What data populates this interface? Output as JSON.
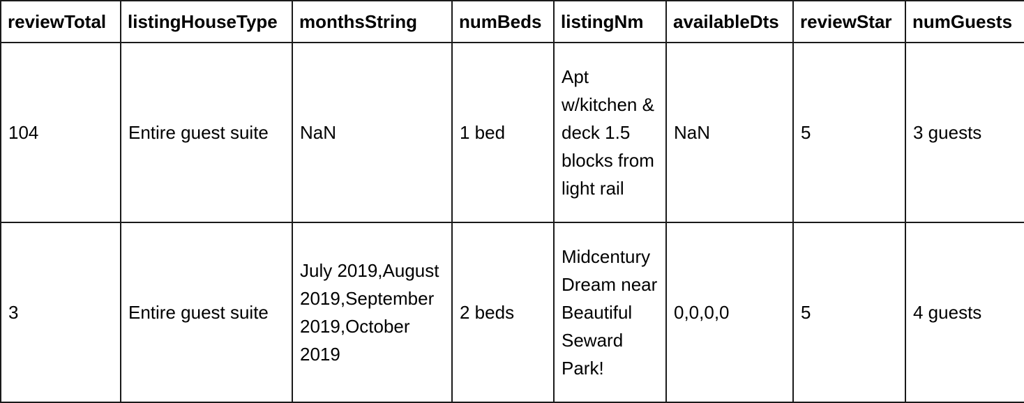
{
  "table": {
    "columns": [
      "reviewTotal",
      "listingHouseType",
      "monthsString",
      "numBeds",
      "listingNm",
      "availableDts",
      "reviewStar",
      "numGuests"
    ],
    "rows": [
      {
        "reviewTotal": "104",
        "listingHouseType": "Entire guest suite",
        "monthsString": "NaN",
        "numBeds": "1 bed",
        "listingNm": "Apt w/kitchen & deck 1.5 blocks from light rail",
        "availableDts": "NaN",
        "reviewStar": "5",
        "numGuests": "3 guests"
      },
      {
        "reviewTotal": "3",
        "listingHouseType": "Entire guest suite",
        "monthsString": "July 2019,August 2019,September 2019,October 2019",
        "numBeds": "2 beds",
        "listingNm": "Midcentury Dream near Beautiful Seward Park!",
        "availableDts": "0,0,0,0",
        "reviewStar": "5",
        "numGuests": "4 guests"
      }
    ]
  }
}
